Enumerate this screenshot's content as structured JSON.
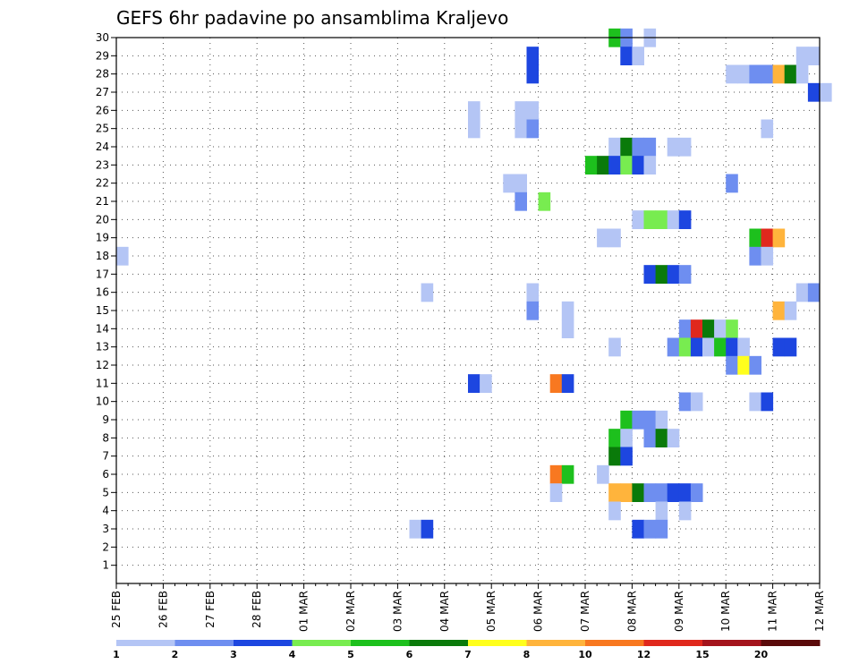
{
  "chart_data": {
    "type": "heatmap",
    "title": "GEFS 6hr padavine po ansamblima Kraljevo",
    "xlabel": "",
    "ylabel": "",
    "x_ticks": [
      "25 FEB",
      "26 FEB",
      "27 FEB",
      "28 FEB",
      "01 MAR",
      "02 MAR",
      "03 MAR",
      "04 MAR",
      "05 MAR",
      "06 MAR",
      "07 MAR",
      "08 MAR",
      "09 MAR",
      "10 MAR",
      "11 MAR",
      "12 MAR"
    ],
    "x_range_days": [
      0,
      15
    ],
    "y_ticks": [
      1,
      2,
      3,
      4,
      5,
      6,
      7,
      8,
      9,
      10,
      11,
      12,
      13,
      14,
      15,
      16,
      17,
      18,
      19,
      20,
      21,
      22,
      23,
      24,
      25,
      26,
      27,
      28,
      29,
      30
    ],
    "y_range": [
      0,
      30
    ],
    "time_step_hours": 6,
    "legend": {
      "colors": [
        "#b4c5f5",
        "#6e8ef0",
        "#1d46e0",
        "#78ec50",
        "#1dc01d",
        "#0a7a0a",
        "#ffff1d",
        "#ffb43c",
        "#f87820",
        "#e0281d",
        "#a4141d",
        "#5a0a0a"
      ],
      "labels": [
        "1",
        "2",
        "3",
        "4",
        "5",
        "6",
        "7",
        "8",
        "10",
        "12",
        "15",
        "20"
      ],
      "placement": "bottom"
    },
    "cells_note": "each cell: [member, time_step_index (6h steps from 25 FEB 00z), color_class_index]",
    "cells": [
      [
        30,
        42,
        4
      ],
      [
        30,
        43,
        1
      ],
      [
        30,
        45,
        0
      ],
      [
        29,
        35,
        2
      ],
      [
        29,
        43,
        2
      ],
      [
        29,
        44,
        0
      ],
      [
        29,
        58,
        0
      ],
      [
        29,
        59,
        0
      ],
      [
        28,
        35,
        2
      ],
      [
        28,
        52,
        0
      ],
      [
        28,
        53,
        0
      ],
      [
        28,
        54,
        1
      ],
      [
        28,
        55,
        1
      ],
      [
        28,
        56,
        7
      ],
      [
        28,
        57,
        5
      ],
      [
        28,
        58,
        0
      ],
      [
        27,
        59,
        2
      ],
      [
        27,
        60,
        0
      ],
      [
        26,
        30,
        0
      ],
      [
        26,
        34,
        0
      ],
      [
        26,
        35,
        0
      ],
      [
        25,
        30,
        0
      ],
      [
        25,
        34,
        0
      ],
      [
        25,
        35,
        1
      ],
      [
        25,
        55,
        0
      ],
      [
        24,
        42,
        0
      ],
      [
        24,
        43,
        5
      ],
      [
        24,
        44,
        1
      ],
      [
        24,
        45,
        1
      ],
      [
        24,
        47,
        0
      ],
      [
        24,
        48,
        0
      ],
      [
        23,
        40,
        4
      ],
      [
        23,
        41,
        5
      ],
      [
        23,
        42,
        2
      ],
      [
        23,
        43,
        3
      ],
      [
        23,
        44,
        2
      ],
      [
        23,
        45,
        0
      ],
      [
        22,
        33,
        0
      ],
      [
        22,
        34,
        0
      ],
      [
        22,
        52,
        1
      ],
      [
        21,
        34,
        1
      ],
      [
        21,
        36,
        3
      ],
      [
        20,
        44,
        0
      ],
      [
        20,
        45,
        3
      ],
      [
        20,
        46,
        3
      ],
      [
        20,
        47,
        0
      ],
      [
        20,
        48,
        2
      ],
      [
        19,
        41,
        0
      ],
      [
        19,
        42,
        0
      ],
      [
        19,
        54,
        4
      ],
      [
        19,
        55,
        9
      ],
      [
        19,
        56,
        7
      ],
      [
        18,
        0,
        0
      ],
      [
        18,
        54,
        1
      ],
      [
        18,
        55,
        0
      ],
      [
        17,
        45,
        2
      ],
      [
        17,
        46,
        5
      ],
      [
        17,
        47,
        2
      ],
      [
        17,
        48,
        1
      ],
      [
        16,
        26,
        0
      ],
      [
        16,
        35,
        0
      ],
      [
        16,
        58,
        0
      ],
      [
        16,
        59,
        1
      ],
      [
        15,
        35,
        1
      ],
      [
        15,
        38,
        0
      ],
      [
        15,
        56,
        7
      ],
      [
        15,
        57,
        0
      ],
      [
        14,
        38,
        0
      ],
      [
        14,
        48,
        1
      ],
      [
        14,
        49,
        9
      ],
      [
        14,
        50,
        5
      ],
      [
        14,
        51,
        0
      ],
      [
        14,
        52,
        3
      ],
      [
        13,
        42,
        0
      ],
      [
        13,
        47,
        1
      ],
      [
        13,
        48,
        3
      ],
      [
        13,
        49,
        2
      ],
      [
        13,
        50,
        0
      ],
      [
        13,
        51,
        4
      ],
      [
        13,
        52,
        2
      ],
      [
        13,
        53,
        0
      ],
      [
        13,
        56,
        2
      ],
      [
        13,
        57,
        2
      ],
      [
        12,
        52,
        1
      ],
      [
        12,
        53,
        6
      ],
      [
        12,
        54,
        1
      ],
      [
        11,
        30,
        2
      ],
      [
        11,
        31,
        0
      ],
      [
        11,
        37,
        8
      ],
      [
        11,
        38,
        2
      ],
      [
        10,
        48,
        1
      ],
      [
        10,
        49,
        0
      ],
      [
        10,
        54,
        0
      ],
      [
        10,
        55,
        2
      ],
      [
        9,
        43,
        4
      ],
      [
        9,
        44,
        1
      ],
      [
        9,
        45,
        1
      ],
      [
        9,
        46,
        0
      ],
      [
        8,
        42,
        4
      ],
      [
        8,
        43,
        0
      ],
      [
        8,
        45,
        1
      ],
      [
        8,
        46,
        5
      ],
      [
        8,
        47,
        0
      ],
      [
        7,
        42,
        5
      ],
      [
        7,
        43,
        2
      ],
      [
        6,
        37,
        8
      ],
      [
        6,
        38,
        4
      ],
      [
        6,
        41,
        0
      ],
      [
        5,
        42,
        7
      ],
      [
        5,
        43,
        7
      ],
      [
        5,
        44,
        5
      ],
      [
        5,
        45,
        1
      ],
      [
        5,
        46,
        1
      ],
      [
        5,
        47,
        2
      ],
      [
        5,
        48,
        2
      ],
      [
        5,
        49,
        1
      ],
      [
        5,
        37,
        0
      ],
      [
        4,
        42,
        0
      ],
      [
        4,
        46,
        0
      ],
      [
        4,
        48,
        0
      ],
      [
        3,
        25,
        0
      ],
      [
        3,
        26,
        2
      ],
      [
        3,
        44,
        2
      ],
      [
        3,
        45,
        1
      ],
      [
        3,
        46,
        1
      ]
    ]
  }
}
